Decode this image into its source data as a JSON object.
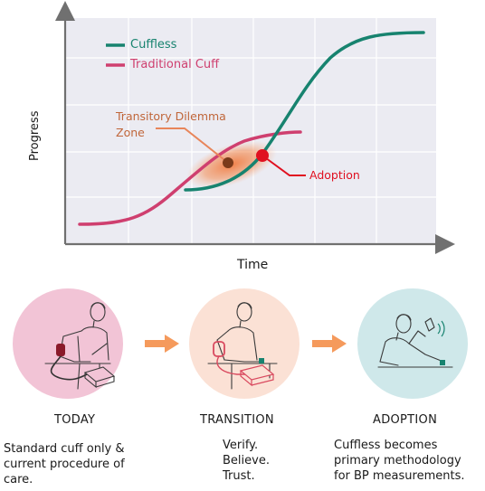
{
  "chart": {
    "ylabel": "Progress",
    "xlabel": "Time",
    "legend": [
      {
        "label": "Cuffless",
        "color": "#17836f"
      },
      {
        "label": "Traditional Cuff",
        "color": "#cf3f6f"
      }
    ],
    "zone_label": "Transitory Dilemma\nZone",
    "adoption_label": "Adoption"
  },
  "colors": {
    "cuffless": "#17836f",
    "traditional": "#cf3f6f",
    "zone": "#f07a40",
    "adoption": "#e01020",
    "arrow": "#f59a5c",
    "grid_bg": "#ebebf2"
  },
  "stages": [
    {
      "title": "TODAY",
      "desc": "Standard cuff only &\ncurrent procedure of\ncare.",
      "bg": "#f2c4d6",
      "icon": "patient-standard-cuff-icon"
    },
    {
      "title": "TRANSITION",
      "desc": "Verify.\nBelieve.\nTrust.",
      "bg": "#fbe1d5",
      "icon": "patient-cuff-and-wearable-icon"
    },
    {
      "title": "ADOPTION",
      "desc": "Cuffless becomes\nprimary methodology\nfor BP measurements.",
      "bg": "#cfe8ea",
      "icon": "patient-wearable-phone-icon"
    }
  ]
}
